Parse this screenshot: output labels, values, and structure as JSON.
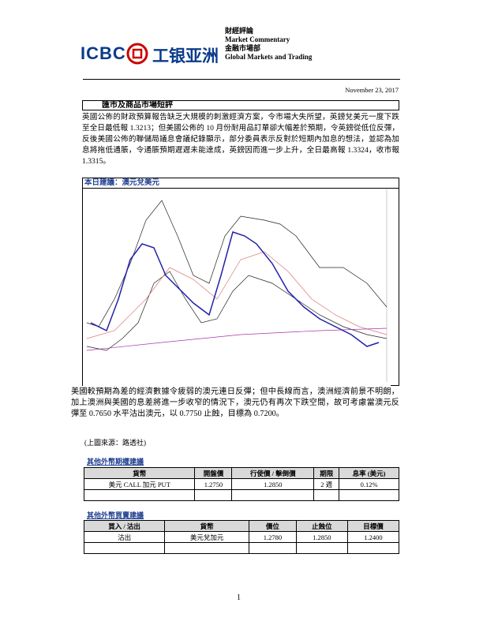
{
  "header": {
    "logo_latin": "ICBC",
    "logo_cn": "工银亚洲",
    "lines": [
      "財經評論",
      "Market Commentary",
      "金融市場部",
      "Global Markets and Trading"
    ]
  },
  "date": "November 23, 2017",
  "section_title": "匯市及商品市場短評",
  "paragraph1": "英國公佈的財政預算報告缺乏大規模的刺激經濟方案，令市場大失所望，英鎊兌美元一度下跌至全日最低報 1.3213；但美國公佈的 10 月份耐用品訂單卻大幅差於預期，令英鎊從低位反彈，反後美國公佈的聯儲局議息會議紀錄顯示，部分委員表示反對於短期內加息的想法，並認為加息將拖低通脹，令通脹預期遲遲未能達成，英鎊因而進一步上升，全日最高報 1.3324，收市報 1.3315。",
  "recommendation_title": "本日建議：澳元兌美元",
  "paragraph2": "美國較預期為差的經濟數據令疲弱的澳元連日反彈；但中長線而言，澳洲經濟前景不明朗，加上澳洲與美國的息差將進一步收窄的情況下，澳元仍有再次下跌空間，故可考慮當澳元反彈至 0.7650 水平沽出澳元，以 0.7750 止蝕，目標為 0.7200。",
  "source": "(上圖來源：路透社)",
  "options_table": {
    "title": "其他外幣期權建議",
    "headers": [
      "貨幣",
      "開盤價",
      "行使價 / 擊倒價",
      "期限",
      "息率 (美元)"
    ],
    "rows": [
      [
        "美元 CALL 加元 PUT",
        "1.2750",
        "1.2850",
        "2 週",
        "0.12%"
      ]
    ]
  },
  "trading_table": {
    "title": "其他外幣買賣建議",
    "headers": [
      "買入 / 沽出",
      "貨幣",
      "價位",
      "止蝕位",
      "目標價"
    ],
    "rows": [
      [
        "沽出",
        "美元兌加元",
        "1.2780",
        "1.2850",
        "1.2400"
      ]
    ]
  },
  "page_number": "1"
}
